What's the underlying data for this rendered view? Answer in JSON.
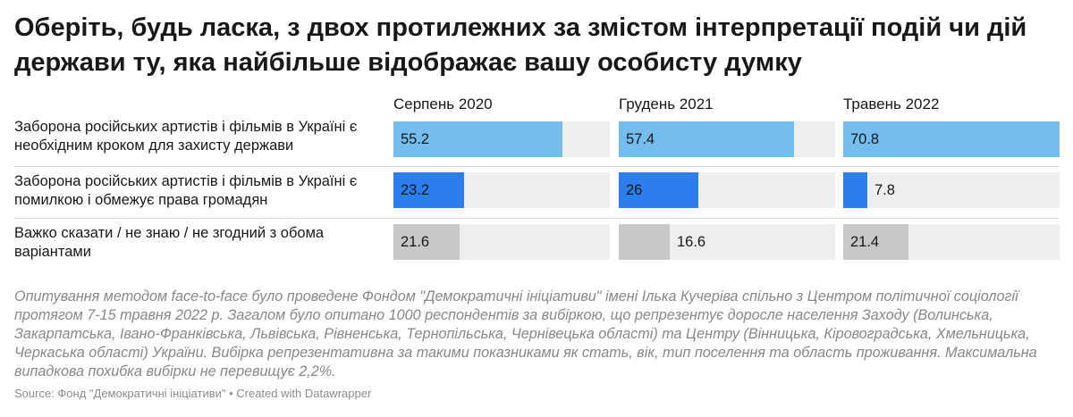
{
  "title": "Оберіть, будь ласка, з двох протилежних за змістом інтерпретації подій чи дій держави ту, яка найбільше відображає вашу особисту думку",
  "chart_data": {
    "type": "bar",
    "orientation": "horizontal",
    "columns": [
      "Серпень 2020",
      "Грудень 2021",
      "Травень 2022"
    ],
    "rows": [
      "Заборона російських артистів і фільмів в Україні є необхідним кроком для захисту держави",
      "Заборона російських артистів і фільмів в Україні є помилкою і обмежує права громадян",
      "Важко сказати / не знаю / не згодний з обома варіантами"
    ],
    "values": [
      [
        55.2,
        57.4,
        70.8
      ],
      [
        23.2,
        26,
        7.8
      ],
      [
        21.6,
        16.6,
        21.4
      ]
    ],
    "labels": [
      [
        "55.2",
        "57.4",
        "70.8"
      ],
      [
        "23.2",
        "26",
        "7.8"
      ],
      [
        "21.6",
        "16.6",
        "21.4"
      ]
    ],
    "colors": [
      "#74bdec",
      "#2c7ded",
      "#c8c8c8"
    ],
    "track_color": "#eeeeee",
    "xlim": [
      0,
      70.8
    ]
  },
  "notes": "Опитування методом face-to-face було проведене Фондом \"Демократичні ініціативи\" імені Ілька Кучеріва спільно з Центром політичної соціології протягом 7-15 травня 2022 р. Загалом було опитано 1000 респондентів за вибіркою, що репрезентує доросле населення Заходу (Волинська, Закарпатська, Івано-Франківська, Львівська, Рівненська, Тернопільська, Чернівецька області) та Центру (Вінницька, Кіровоградська, Хмельницька, Черкаська області) України. Вибірка репрезентативна за такими показниками як стать, вік, тип поселення та область проживання. Максимальна випадкова похибка вибірки не перевищує 2,2%.",
  "source": "Source: Фонд \"Демократичні ініціативи\" • Created with Datawrapper"
}
